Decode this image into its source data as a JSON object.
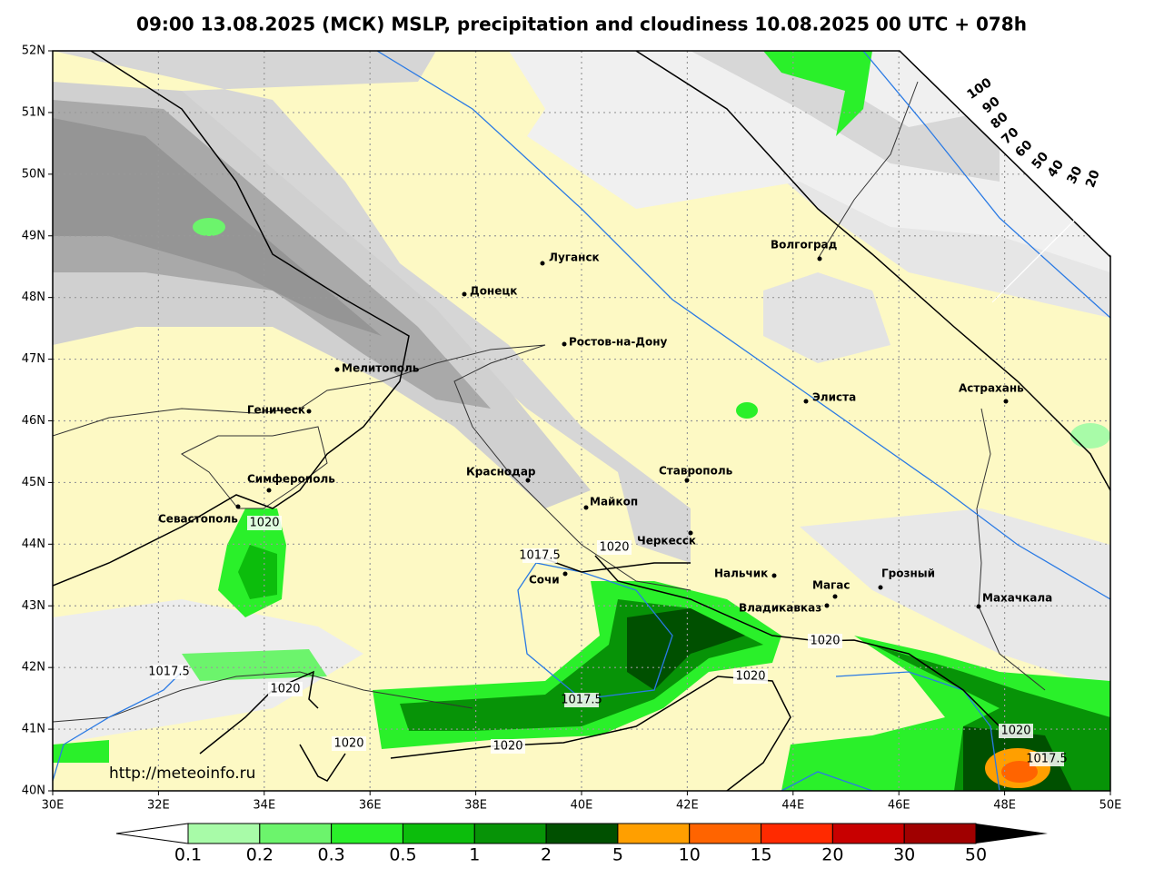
{
  "title": "09:00 13.08.2025 (МСК) MSLP, precipitation and cloudiness 10.08.2025 00 UTC + 078h",
  "lat_labels": [
    "52N",
    "51N",
    "50N",
    "49N",
    "48N",
    "47N",
    "46N",
    "45N",
    "44N",
    "43N",
    "42N",
    "41N",
    "40N"
  ],
  "lon_labels": [
    "30E",
    "32E",
    "34E",
    "36E",
    "38E",
    "40E",
    "42E",
    "44E",
    "46E",
    "48E",
    "50E"
  ],
  "cities": [
    "Луганск",
    "Донецк",
    "Ростов-на-Дону",
    "Мелитополь",
    "Геническ",
    "Симферополь",
    "Севастополь",
    "Краснодар",
    "Майкоп",
    "Ставрополь",
    "Черкесск",
    "Нальчик",
    "Сочи",
    "Волгоград",
    "Элиста",
    "Астрахань",
    "Магас",
    "Грозный",
    "Владикавказ",
    "Махачкала"
  ],
  "isobar_labels": [
    "1020",
    "1017.5",
    "1020",
    "1020",
    "1017.5",
    "1020",
    "1020",
    "1017.5",
    "1020",
    "1020",
    "1020",
    "1017.5"
  ],
  "cloud_scale": [
    "100",
    "90",
    "80",
    "70",
    "60",
    "50",
    "40",
    "30",
    "20"
  ],
  "precip_legend": [
    "0.1",
    "0.2",
    "0.3",
    "0.5",
    "1",
    "2",
    "5",
    "10",
    "15",
    "20",
    "30",
    "50"
  ],
  "url": "http://meteoinfo.ru"
}
